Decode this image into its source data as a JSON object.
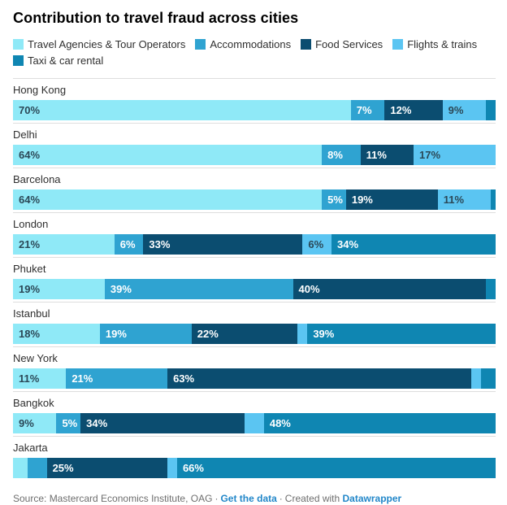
{
  "title": "Contribution to travel fraud across cities",
  "colors": {
    "travel_agencies": "#8FE9F7",
    "accommodations": "#2FA3D1",
    "food_services": "#0B4D70",
    "flights_trains": "#5BC5F2",
    "taxi_car_rental": "#0F86B2",
    "label_dark": "#2B4857",
    "label_light": "#FFFFFF",
    "separator": "#DEDEDE",
    "link_blue": "#2287C9"
  },
  "legend": [
    {
      "label": "Travel Agencies & Tour Operators",
      "color": "#8FE9F7"
    },
    {
      "label": "Accommodations",
      "color": "#2FA3D1"
    },
    {
      "label": "Food Services",
      "color": "#0B4D70"
    },
    {
      "label": "Flights & trains",
      "color": "#5BC5F2"
    },
    {
      "label": "Taxi & car rental",
      "color": "#0F86B2"
    }
  ],
  "chart_data": {
    "type": "bar",
    "variant": "stacked-horizontal",
    "unit": "%",
    "xlim": [
      0,
      100
    ],
    "grid": false,
    "legend_position": "top",
    "title": "Contribution to travel fraud across cities",
    "categories": [
      "Hong Kong",
      "Delhi",
      "Barcelona",
      "London",
      "Phuket",
      "Istanbul",
      "New York",
      "Bangkok",
      "Jakarta"
    ],
    "series": [
      {
        "name": "Travel Agencies & Tour Operators",
        "color": "#8FE9F7",
        "text_color": "#2B4857",
        "values": [
          70,
          64,
          64,
          21,
          19,
          18,
          11,
          9,
          3
        ]
      },
      {
        "name": "Accommodations",
        "color": "#2FA3D1",
        "text_color": "#FFFFFF",
        "values": [
          7,
          8,
          5,
          6,
          39,
          19,
          21,
          5,
          4
        ]
      },
      {
        "name": "Food Services",
        "color": "#0B4D70",
        "text_color": "#FFFFFF",
        "values": [
          12,
          11,
          19,
          33,
          40,
          22,
          63,
          34,
          25
        ]
      },
      {
        "name": "Flights & trains",
        "color": "#5BC5F2",
        "text_color": "#2B4857",
        "values": [
          9,
          17,
          11,
          6,
          0,
          2,
          2,
          4,
          2
        ]
      },
      {
        "name": "Taxi & car rental",
        "color": "#0F86B2",
        "text_color": "#FFFFFF",
        "values": [
          2,
          0,
          1,
          34,
          2,
          39,
          3,
          48,
          66
        ]
      }
    ],
    "label_format": "{value}%",
    "min_value_for_label": 5
  },
  "footer": {
    "source_text": "Source: Mastercard Economics Institute, OAG",
    "separator": "·",
    "get_data_link": "Get the data",
    "created_with": "Created with",
    "datawrapper_link": "Datawrapper"
  }
}
